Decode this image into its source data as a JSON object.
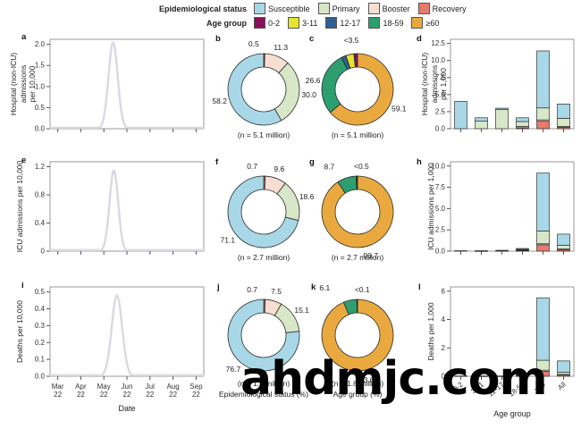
{
  "watermark": {
    "text": "ahdmjc.com",
    "color": "#000000"
  },
  "legend": {
    "epidemiological_status": {
      "title": "Epidemiological status",
      "items": [
        {
          "label": "Susceptible",
          "color": "#a8d8e8"
        },
        {
          "label": "Primary",
          "color": "#d8e7c8"
        },
        {
          "label": "Booster",
          "color": "#f6ded2"
        },
        {
          "label": "Recovery",
          "color": "#e57a6d"
        }
      ]
    },
    "age_group": {
      "title": "Age group",
      "items": [
        {
          "label": "0-2",
          "color": "#8a0f5a"
        },
        {
          "label": "3-11",
          "color": "#e5e42e"
        },
        {
          "label": "12-17",
          "color": "#30608f"
        },
        {
          "label": "18-59",
          "color": "#2d9e6f"
        },
        {
          "label": "≥60",
          "color": "#e9a93f"
        }
      ]
    }
  },
  "chart_data": [
    {
      "panel": "a",
      "type": "line",
      "ylabel": "Hospital (non-ICU) admissions\nper 10,000",
      "yticks": [
        "0.0",
        "0.5",
        "1.0",
        "1.5",
        "2.0"
      ],
      "ymax": 2.12,
      "x_tick_labels": [
        "Mar 22",
        "Apr 22",
        "May 22",
        "Jun 22",
        "Jul 22",
        "Aug 22",
        "Sep 22"
      ],
      "show_x_tick_labels": false,
      "line_color": "#d9d9e3",
      "curve": {
        "shape": "gaussian",
        "peak_value": 2.05,
        "peak_x_frac": 0.41,
        "sigma_frac": 0.03
      }
    },
    {
      "panel": "b",
      "type": "donut",
      "order": "clockwise-from-top",
      "caption": "(n = 5.1 million)",
      "segments": [
        {
          "name": "Recovery",
          "value": 0.5,
          "label": "0.5",
          "color": "#e57a6d"
        },
        {
          "name": "Booster",
          "value": 11.3,
          "label": "11.3",
          "color": "#f6ded2"
        },
        {
          "name": "Primary",
          "value": 30.0,
          "label": "30.0",
          "color": "#d8e7c8"
        },
        {
          "name": "Susceptible",
          "value": 58.2,
          "label": "58.2",
          "color": "#a8d8e8"
        }
      ]
    },
    {
      "panel": "c",
      "type": "donut",
      "order": "clockwise-from-top",
      "caption": "(n = 5.1 million)",
      "small_segments_combined_label": "<3.5",
      "segments": [
        {
          "name": "≥60",
          "value": 59.1,
          "label": "59.1",
          "color": "#e9a93f"
        },
        {
          "name": "18-59",
          "value": 26.6,
          "label": "26.6",
          "color": "#2d9e6f"
        },
        {
          "name": "12-17",
          "value": 2.0,
          "label": "",
          "color": "#30608f"
        },
        {
          "name": "3-11",
          "value": 3.4,
          "label": "<3.5",
          "color": "#e5e42e"
        },
        {
          "name": "0-2",
          "value": 1.5,
          "label": "",
          "color": "#8a0f5a"
        }
      ]
    },
    {
      "panel": "d",
      "type": "bar",
      "ylabel": "Hospital (non-ICU) admissions\nper 1,000",
      "yticks": [
        "0.0",
        "2.5",
        "5.0",
        "7.5",
        "10.0",
        "12.5"
      ],
      "ymax": 13.1,
      "categories": [
        "0-2",
        "3-11",
        "12-17",
        "18-59",
        "≥60",
        "All"
      ],
      "show_x_tick_labels": false,
      "series": [
        {
          "name": "Recovery",
          "color": "#e57a6d",
          "values": [
            0,
            0,
            0,
            0.15,
            1.1,
            0.2
          ]
        },
        {
          "name": "Booster",
          "color": "#f6ded2",
          "values": [
            0,
            0,
            0,
            0.2,
            0.2,
            0.12
          ]
        },
        {
          "name": "Primary",
          "color": "#d8e7c8",
          "values": [
            0,
            1.1,
            2.8,
            0.7,
            1.75,
            1.2
          ]
        },
        {
          "name": "Susceptible",
          "color": "#a8d8e8",
          "values": [
            4.0,
            0.5,
            0.2,
            0.55,
            8.35,
            2.1
          ]
        }
      ]
    },
    {
      "panel": "e",
      "type": "line",
      "ylabel": "ICU admissions per 10,000",
      "yticks": [
        "0",
        "0.4",
        "0.8",
        "1.2"
      ],
      "ymax": 1.27,
      "x_tick_labels": [
        "Mar 22",
        "Apr 22",
        "May 22",
        "Jun 22",
        "Jul 22",
        "Aug 22",
        "Sep 22"
      ],
      "show_x_tick_labels": false,
      "line_color": "#d9d9e3",
      "curve": {
        "shape": "gaussian",
        "peak_value": 1.15,
        "peak_x_frac": 0.415,
        "sigma_frac": 0.028
      }
    },
    {
      "panel": "f",
      "type": "donut",
      "order": "clockwise-from-top",
      "caption": "(n = 2.7 million)",
      "segments": [
        {
          "name": "Recovery",
          "value": 0.7,
          "label": "0.7",
          "color": "#e57a6d"
        },
        {
          "name": "Booster",
          "value": 9.6,
          "label": "9.6",
          "color": "#f6ded2"
        },
        {
          "name": "Primary",
          "value": 18.6,
          "label": "18.6",
          "color": "#d8e7c8"
        },
        {
          "name": "Susceptible",
          "value": 71.1,
          "label": "71.1",
          "color": "#a8d8e8"
        }
      ]
    },
    {
      "panel": "g",
      "type": "donut",
      "order": "clockwise-from-top",
      "caption": "(n = 2.7 million)",
      "small_segments_combined_label": "<0.5",
      "segments": [
        {
          "name": "≥60",
          "value": 90.7,
          "label": "90.7",
          "color": "#e9a93f"
        },
        {
          "name": "18-59",
          "value": 8.7,
          "label": "8.7",
          "color": "#2d9e6f"
        },
        {
          "name": "12-17",
          "value": 0.2,
          "label": "<0.5",
          "color": "#30608f"
        },
        {
          "name": "3-11",
          "value": 0.2,
          "label": "",
          "color": "#e5e42e"
        },
        {
          "name": "0-2",
          "value": 0.2,
          "label": "",
          "color": "#8a0f5a"
        }
      ]
    },
    {
      "panel": "h",
      "type": "bar",
      "ylabel": "ICU admissions per 1,000",
      "yticks": [
        "0.0",
        "2.5",
        "5.0",
        "7.5",
        "10.0"
      ],
      "ymax": 10.5,
      "categories": [
        "0-2",
        "3-11",
        "12-17",
        "18-59",
        "≥60",
        "All"
      ],
      "show_x_tick_labels": false,
      "series": [
        {
          "name": "Recovery",
          "color": "#e57a6d",
          "values": [
            0,
            0,
            0,
            0.08,
            0.75,
            0.18
          ]
        },
        {
          "name": "Booster",
          "color": "#f6ded2",
          "values": [
            0,
            0,
            0,
            0.05,
            0.12,
            0.07
          ]
        },
        {
          "name": "Primary",
          "color": "#d8e7c8",
          "values": [
            0,
            0.02,
            0.04,
            0.08,
            1.5,
            0.45
          ]
        },
        {
          "name": "Susceptible",
          "color": "#a8d8e8",
          "values": [
            0.05,
            0.03,
            0.06,
            0.1,
            6.8,
            1.3
          ]
        }
      ]
    },
    {
      "panel": "i",
      "type": "line",
      "ylabel": "Deaths per 10,000",
      "yticks": [
        "0.0",
        "0.1",
        "0.2",
        "0.3",
        "0.4",
        "0.5"
      ],
      "ymax": 0.53,
      "x_tick_labels": [
        "Mar 22",
        "Apr 22",
        "May 22",
        "Jun 22",
        "Jul 22",
        "Aug 22",
        "Sep 22"
      ],
      "show_x_tick_labels": true,
      "xlabel": "Date",
      "line_color": "#d9d9e3",
      "curve": {
        "shape": "gaussian",
        "peak_value": 0.48,
        "peak_x_frac": 0.435,
        "sigma_frac": 0.034
      }
    },
    {
      "panel": "j",
      "type": "donut",
      "order": "clockwise-from-top",
      "caption": "(n = 1.6 million)",
      "xlabel": "Epidemiological status (%)",
      "segments": [
        {
          "name": "Recovery",
          "value": 0.7,
          "label": "0.7",
          "color": "#e57a6d"
        },
        {
          "name": "Booster",
          "value": 7.5,
          "label": "7.5",
          "color": "#f6ded2"
        },
        {
          "name": "Primary",
          "value": 15.1,
          "label": "15.1",
          "color": "#d8e7c8"
        },
        {
          "name": "Susceptible",
          "value": 76.7,
          "label": "76.7",
          "color": "#a8d8e8"
        }
      ]
    },
    {
      "panel": "k",
      "type": "donut",
      "order": "clockwise-from-top",
      "caption": "(n = 1.6 million)",
      "xlabel": "Age group (%)",
      "small_segments_combined_label": "<0.1",
      "segments": [
        {
          "name": "≥60",
          "value": 93.6,
          "label": "93.6",
          "color": "#e9a93f"
        },
        {
          "name": "18-59",
          "value": 6.1,
          "label": "6.1",
          "color": "#2d9e6f"
        },
        {
          "name": "12-17",
          "value": 0.1,
          "label": "<0.1",
          "color": "#30608f"
        },
        {
          "name": "3-11",
          "value": 0.1,
          "label": "",
          "color": "#e5e42e"
        },
        {
          "name": "0-2",
          "value": 0.1,
          "label": "",
          "color": "#8a0f5a"
        }
      ]
    },
    {
      "panel": "l",
      "type": "bar",
      "ylabel": "Deaths per 1,000",
      "yticks": [
        "0",
        "2",
        "4",
        "6"
      ],
      "ymax": 6.3,
      "categories": [
        "0-2",
        "3-11",
        "12-17",
        "18-59",
        "≥60",
        "All"
      ],
      "show_x_tick_labels": true,
      "xlabel": "Age group",
      "series": [
        {
          "name": "Recovery",
          "color": "#e57a6d",
          "values": [
            0,
            0,
            0,
            0.02,
            0.35,
            0.1
          ]
        },
        {
          "name": "Booster",
          "color": "#f6ded2",
          "values": [
            0,
            0,
            0,
            0.02,
            0.08,
            0.03
          ]
        },
        {
          "name": "Primary",
          "color": "#d8e7c8",
          "values": [
            0,
            0.01,
            0.01,
            0.03,
            0.7,
            0.15
          ]
        },
        {
          "name": "Susceptible",
          "color": "#a8d8e8",
          "values": [
            0.02,
            0.01,
            0.01,
            0.05,
            4.4,
            0.8
          ]
        }
      ]
    }
  ]
}
